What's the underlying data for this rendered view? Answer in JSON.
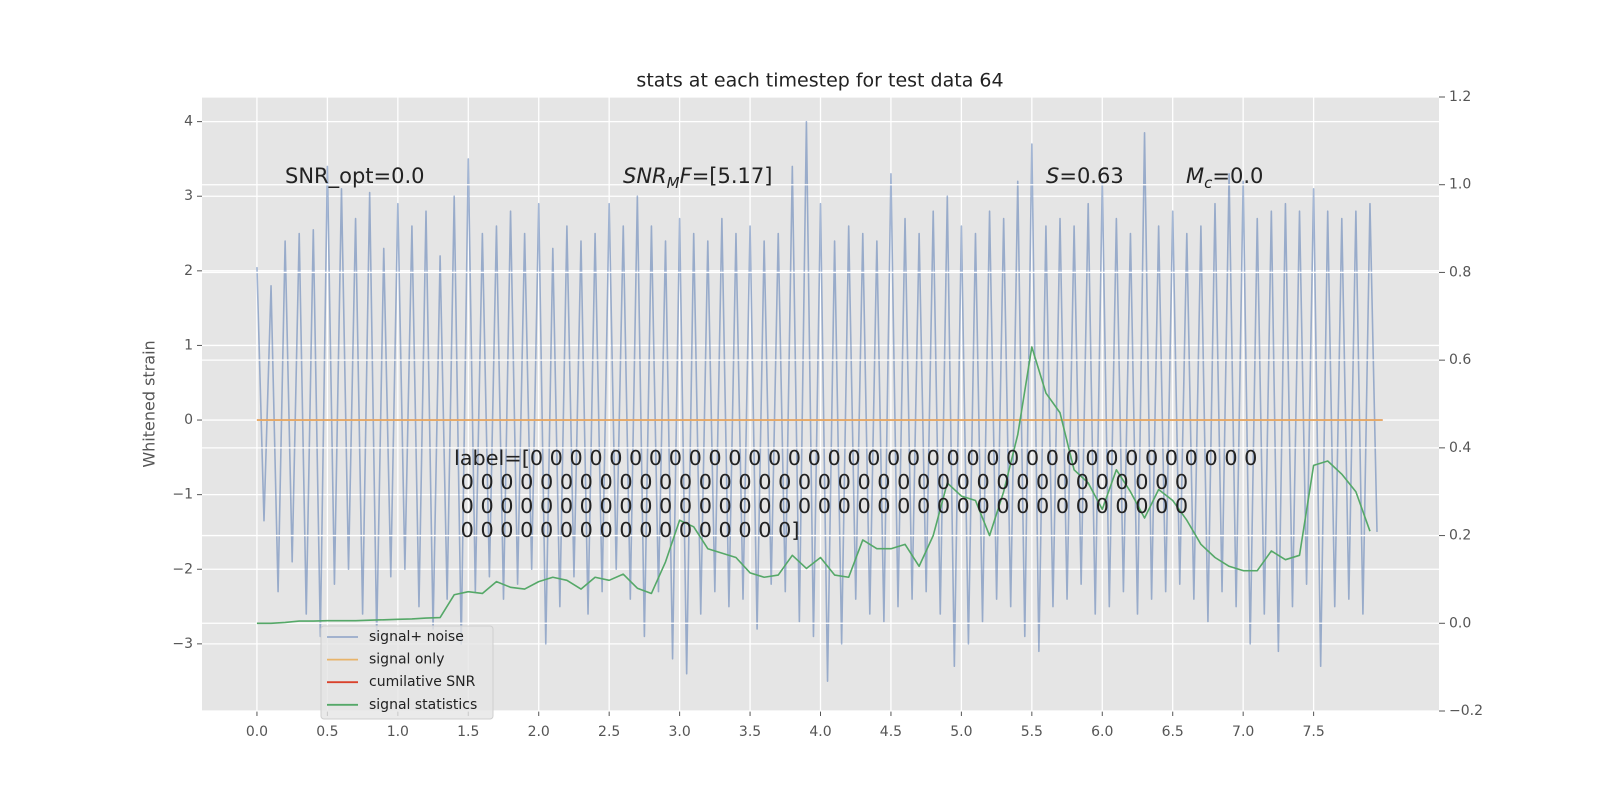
{
  "chart_data": {
    "type": "line",
    "title": "stats at each timestep for test data 64",
    "ylabel": "Whitened strain",
    "xlim": [
      -0.39,
      8.39
    ],
    "ylim": [
      -3.9,
      4.33
    ],
    "y2lim": [
      -0.2,
      1.2
    ],
    "xticks": [
      {
        "value": 0,
        "label": "0.0"
      },
      0.5,
      {
        "value": 1,
        "label": "1.0"
      },
      1.5,
      {
        "value": 2,
        "label": "2.0"
      },
      2.5,
      {
        "value": 3,
        "label": "3.0"
      },
      3.5,
      {
        "value": 4,
        "label": "4.0"
      },
      4.5,
      {
        "value": 5,
        "label": "5.0"
      },
      5.5,
      {
        "value": 6,
        "label": "6.0"
      },
      6.5,
      {
        "value": 7,
        "label": "7.0"
      },
      7.5
    ],
    "yticks": [
      {
        "value": -3,
        "label": "−3"
      },
      {
        "value": -2,
        "label": "−2"
      },
      {
        "value": -1,
        "label": "−1"
      },
      0,
      1,
      2,
      3,
      4
    ],
    "y2ticks": [
      {
        "value": -0.2,
        "label": "−0.2"
      },
      {
        "value": 0,
        "label": "0.0"
      },
      0.2,
      0.4,
      0.6,
      0.8,
      {
        "value": 1,
        "label": "1.0"
      },
      1.2
    ],
    "grid": true,
    "legend": "lower left",
    "series": [
      {
        "name": "signal+ noise",
        "color": "#4c72b0",
        "alpha": 0.5,
        "x": [
          0,
          0.05,
          0.1,
          0.15,
          0.2,
          0.25,
          0.3,
          0.35,
          0.4,
          0.45,
          0.5,
          0.55,
          0.6,
          0.65,
          0.7,
          0.75,
          0.8,
          0.85,
          0.9,
          0.95,
          1,
          1.05,
          1.1,
          1.15,
          1.2,
          1.25,
          1.3,
          1.35,
          1.4,
          1.45,
          1.5,
          1.55,
          1.6,
          1.65,
          1.7,
          1.75,
          1.8,
          1.85,
          1.9,
          1.95,
          2,
          2.05,
          2.1,
          2.15,
          2.2,
          2.25,
          2.3,
          2.35,
          2.4,
          2.45,
          2.5,
          2.55,
          2.6,
          2.65,
          2.7,
          2.75,
          2.8,
          2.85,
          2.9,
          2.95,
          3,
          3.05,
          3.1,
          3.15,
          3.2,
          3.25,
          3.3,
          3.35,
          3.4,
          3.45,
          3.5,
          3.55,
          3.6,
          3.65,
          3.7,
          3.75,
          3.8,
          3.85,
          3.9,
          3.95,
          4,
          4.05,
          4.1,
          4.15,
          4.2,
          4.25,
          4.3,
          4.35,
          4.4,
          4.45,
          4.5,
          4.55,
          4.6,
          4.65,
          4.7,
          4.75,
          4.8,
          4.85,
          4.9,
          4.95,
          5,
          5.05,
          5.1,
          5.15,
          5.2,
          5.25,
          5.3,
          5.35,
          5.4,
          5.45,
          5.5,
          5.55,
          5.6,
          5.65,
          5.7,
          5.75,
          5.8,
          5.85,
          5.9,
          5.95,
          6,
          6.05,
          6.1,
          6.15,
          6.2,
          6.25,
          6.3,
          6.35,
          6.4,
          6.45,
          6.5,
          6.55,
          6.6,
          6.65,
          6.7,
          6.75,
          6.8,
          6.85,
          6.9,
          6.95,
          7,
          7.05,
          7.1,
          7.15,
          7.2,
          7.25,
          7.3,
          7.35,
          7.4,
          7.45,
          7.5,
          7.55,
          7.6,
          7.65,
          7.7,
          7.75,
          7.8,
          7.85,
          7.9,
          7.95
        ],
        "values": [
          2.05,
          -1.35,
          1.8,
          -2.3,
          2.4,
          -1.9,
          2.5,
          -2.6,
          2.55,
          -2.9,
          3.4,
          -2.2,
          3.1,
          -2.0,
          2.7,
          -2.6,
          3.05,
          -2.9,
          2.3,
          -2.1,
          2.9,
          -2.0,
          2.6,
          -2.5,
          2.8,
          -2.8,
          2.2,
          -2.4,
          3.0,
          -3.0,
          3.5,
          -2.3,
          2.5,
          -2.1,
          2.6,
          -2.4,
          2.8,
          -2.2,
          2.5,
          -2.0,
          2.9,
          -3.0,
          2.3,
          -2.5,
          2.6,
          -2.1,
          2.4,
          -2.6,
          2.5,
          -2.3,
          2.9,
          -2.0,
          2.6,
          -2.4,
          3.0,
          -2.9,
          2.6,
          -2.3,
          2.4,
          -3.2,
          2.7,
          -3.4,
          2.5,
          -2.6,
          2.4,
          -2.3,
          2.7,
          -2.5,
          2.5,
          -2.4,
          2.6,
          -2.8,
          2.4,
          -2.2,
          2.5,
          -2.3,
          3.4,
          -2.7,
          4.0,
          -2.9,
          2.9,
          -3.5,
          2.4,
          -3.0,
          2.6,
          -2.4,
          2.5,
          -2.6,
          2.4,
          -2.7,
          3.3,
          -2.5,
          2.7,
          -2.4,
          2.5,
          -2.3,
          2.8,
          -2.6,
          3.0,
          -3.3,
          2.6,
          -3.0,
          2.5,
          -2.7,
          2.8,
          -2.4,
          2.7,
          -2.5,
          3.2,
          -2.9,
          3.7,
          -3.1,
          2.6,
          -2.5,
          2.7,
          -2.4,
          2.6,
          -2.2,
          2.9,
          -2.6,
          3.2,
          -2.5,
          2.7,
          -2.3,
          2.5,
          -2.6,
          3.85,
          -2.4,
          2.6,
          -2.3,
          2.8,
          -2.2,
          2.5,
          -2.4,
          2.6,
          -2.7,
          2.9,
          -2.3,
          3.3,
          -2.5,
          3.2,
          -3.0,
          2.7,
          -2.6,
          2.8,
          -3.1,
          2.9,
          -2.5,
          2.8,
          -2.2,
          3.1,
          -3.3,
          2.8,
          -2.5,
          2.7,
          -2.4,
          2.8,
          -2.6,
          2.9,
          -1.5
        ]
      },
      {
        "name": "signal only",
        "color": "#e8b46a",
        "x": [
          0,
          7.99
        ],
        "values": [
          0,
          0
        ]
      },
      {
        "name": "cumilative SNR",
        "color": "#d9412b",
        "x": [
          0,
          7.99
        ],
        "values": [
          0,
          0
        ]
      },
      {
        "name": "signal statistics",
        "color": "#55a868",
        "axis": "y2",
        "x": [
          0,
          0.1,
          0.2,
          0.3,
          0.4,
          0.5,
          0.6,
          0.7,
          0.8,
          0.9,
          1,
          1.1,
          1.2,
          1.3,
          1.4,
          1.5,
          1.6,
          1.7,
          1.8,
          1.9,
          2,
          2.1,
          2.2,
          2.3,
          2.4,
          2.5,
          2.6,
          2.7,
          2.8,
          2.9,
          3,
          3.1,
          3.2,
          3.3,
          3.4,
          3.5,
          3.6,
          3.7,
          3.8,
          3.9,
          4,
          4.1,
          4.2,
          4.3,
          4.4,
          4.5,
          4.6,
          4.7,
          4.8,
          4.9,
          5,
          5.1,
          5.2,
          5.3,
          5.4,
          5.5,
          5.6,
          5.7,
          5.8,
          5.9,
          6,
          6.1,
          6.2,
          6.3,
          6.4,
          6.5,
          6.6,
          6.7,
          6.8,
          6.9,
          7,
          7.1,
          7.2,
          7.3,
          7.4,
          7.5,
          7.6,
          7.7,
          7.8,
          7.9
        ],
        "values": [
          0,
          0,
          0.002,
          0.005,
          0.005,
          0.006,
          0.006,
          0.006,
          0.007,
          0.008,
          0.009,
          0.01,
          0.012,
          0.013,
          0.065,
          0.072,
          0.068,
          0.095,
          0.082,
          0.078,
          0.095,
          0.105,
          0.098,
          0.078,
          0.105,
          0.098,
          0.112,
          0.08,
          0.068,
          0.14,
          0.235,
          0.22,
          0.17,
          0.16,
          0.15,
          0.115,
          0.105,
          0.11,
          0.155,
          0.125,
          0.15,
          0.11,
          0.105,
          0.19,
          0.17,
          0.17,
          0.18,
          0.13,
          0.2,
          0.32,
          0.29,
          0.28,
          0.2,
          0.3,
          0.43,
          0.63,
          0.525,
          0.48,
          0.35,
          0.32,
          0.26,
          0.35,
          0.3,
          0.24,
          0.305,
          0.28,
          0.235,
          0.18,
          0.15,
          0.13,
          0.12,
          0.12,
          0.165,
          0.145,
          0.155,
          0.36,
          0.37,
          0.34,
          0.3,
          0.21
        ]
      }
    ],
    "annotations": [
      {
        "parts": [
          {
            "text": "SNR_opt=0.0"
          }
        ]
      },
      {
        "parts": [
          {
            "text": "SNR",
            "math": "italic"
          },
          {
            "text": "M",
            "math": "sub"
          },
          {
            "text": "F",
            "math": "italic"
          },
          {
            "text": "=[5.17]"
          }
        ]
      },
      {
        "parts": [
          {
            "text": "S",
            "math": "italic"
          },
          {
            "text": "=0.63"
          }
        ]
      },
      {
        "parts": [
          {
            "text": "M",
            "math": "italic"
          },
          {
            "text": "c",
            "math": "sub"
          },
          {
            "text": "=0.0"
          }
        ]
      }
    ],
    "label_text": [
      "label=[0 0 0 0 0 0 0 0 0 0 0 0 0 0 0 0 0 0 0 0 0 0 0 0 0 0 0 0 0 0 0 0 0 0 0 0 0",
      " 0 0 0 0 0 0 0 0 0 0 0 0 0 0 0 0 0 0 0 0 0 0 0 0 0 0 0 0 0 0 0 0 0 0 0 0 0",
      " 0 0 0 0 0 0 0 0 0 0 0 0 0 0 0 0 0 0 0 0 0 0 0 0 0 0 0 0 0 0 0 0 0 0 0 0 0",
      " 0 0 0 0 0 0 0 0 0 0 0 0 0 0 0 0 0]"
    ]
  }
}
